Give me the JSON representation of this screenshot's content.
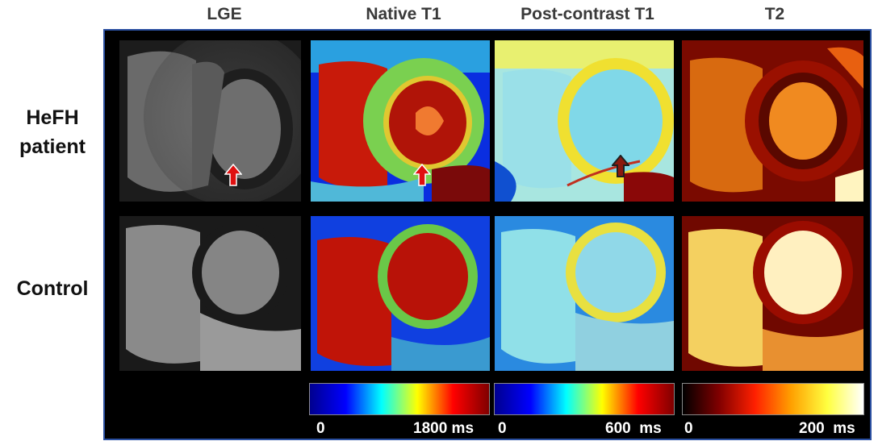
{
  "columns": [
    "LGE",
    "Native T1",
    "Post-contrast T1",
    "T2"
  ],
  "rows": [
    "HeFH\npatient",
    "Control"
  ],
  "colorbars": [
    {
      "min": "0",
      "max": "1800 ms",
      "colormap": "jet"
    },
    {
      "min": "0",
      "max": "600  ms",
      "colormap": "jet"
    },
    {
      "min": "0",
      "max": "200  ms",
      "colormap": "hot"
    }
  ],
  "colors": {
    "frame_border": "#2a4fa0",
    "arrow_red": "#e01010",
    "arrow_dark": "#202020"
  }
}
